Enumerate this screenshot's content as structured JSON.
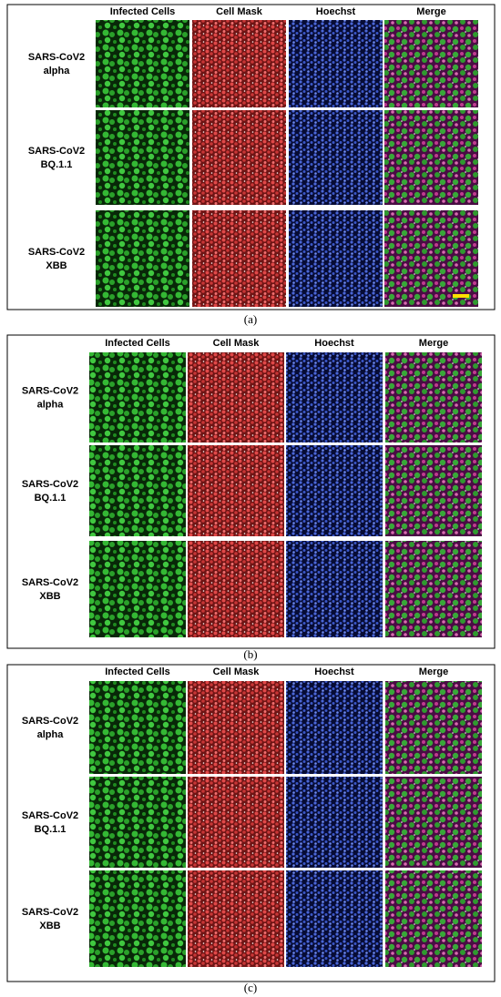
{
  "panels": [
    {
      "columns": [
        "Infected Cells",
        "Cell Mask",
        "Hoechst",
        "Merge"
      ],
      "rows": [
        [
          "SARS-CoV2",
          "alpha"
        ],
        [
          "SARS-CoV2",
          "BQ.1.1"
        ],
        [
          "SARS-CoV2",
          "XBB"
        ]
      ],
      "caption": "(a)"
    },
    {
      "columns": [
        "Infected Cells",
        "Cell Mask",
        "Hoechst",
        "Merge"
      ],
      "rows": [
        [
          "SARS-CoV2",
          "alpha"
        ],
        [
          "SARS-CoV2",
          "BQ.1.1"
        ],
        [
          "SARS-CoV2",
          "XBB"
        ]
      ],
      "caption": "(b)"
    },
    {
      "columns": [
        "Infected Cells",
        "Cell Mask",
        "Hoechst",
        "Merge"
      ],
      "rows": [
        [
          "SARS-CoV2",
          "alpha"
        ],
        [
          "SARS-CoV2",
          "BQ.1.1"
        ],
        [
          "SARS-CoV2",
          "XBB"
        ]
      ],
      "caption": "(c)"
    }
  ]
}
